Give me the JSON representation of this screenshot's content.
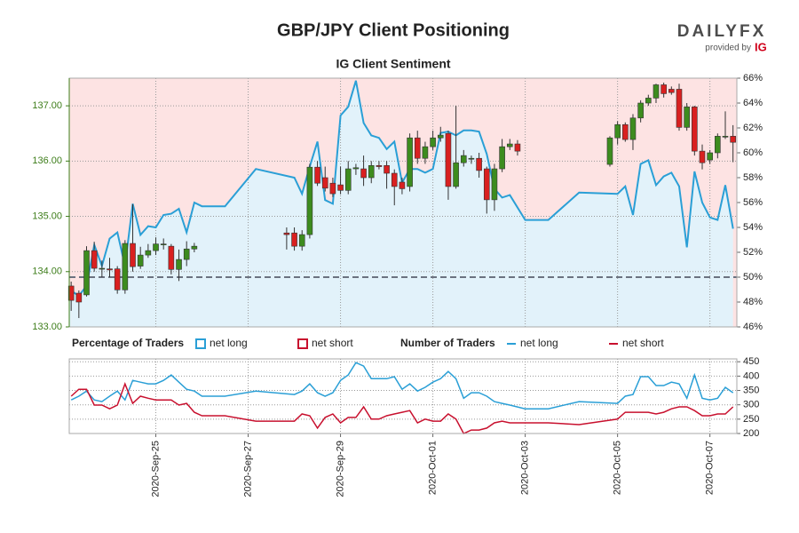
{
  "logo": {
    "brand": "DAILYFX",
    "tagline": "provided by",
    "provider": "IG"
  },
  "chart_data": [
    {
      "type": "candlestick",
      "title": "GBP/JPY Client Positioning",
      "subtitle": "IG Client Sentiment",
      "xlim": [
        "2020-09-23 03:00",
        "2020-10-07 14:00"
      ],
      "ylim": [
        133,
        137.5
      ],
      "yticks": [
        {
          "value": 133,
          "label": "133.00"
        },
        {
          "value": 134,
          "label": "134.00"
        },
        {
          "value": 135,
          "label": "135.00"
        },
        {
          "value": 136,
          "label": "136.00"
        },
        {
          "value": 137,
          "label": "137.00"
        }
      ],
      "y2lim": [
        46,
        66
      ],
      "y2ticks": [
        {
          "value": 46,
          "label": "46%"
        },
        {
          "value": 48,
          "label": "48%"
        },
        {
          "value": 50,
          "label": "50%"
        },
        {
          "value": 52,
          "label": "52%"
        },
        {
          "value": 54,
          "label": "54%"
        },
        {
          "value": 56,
          "label": "56%"
        },
        {
          "value": 58,
          "label": "58%"
        },
        {
          "value": 60,
          "label": "60%"
        },
        {
          "value": 62,
          "label": "62%"
        },
        {
          "value": 64,
          "label": "64%"
        },
        {
          "value": 66,
          "label": "66%"
        }
      ],
      "grid": true,
      "reference_line": 50,
      "up_color": "#3d8c1e",
      "down_color": "#d92020",
      "candles": {
        "x": [
          "2020-09-23 04:00",
          "2020-09-23 08:00",
          "2020-09-23 12:00",
          "2020-09-23 16:00",
          "2020-09-23 20:00",
          "2020-09-24 00:00",
          "2020-09-24 04:00",
          "2020-09-24 08:00",
          "2020-09-24 12:00",
          "2020-09-24 16:00",
          "2020-09-24 20:00",
          "2020-09-25 00:00",
          "2020-09-25 04:00",
          "2020-09-25 08:00",
          "2020-09-25 12:00",
          "2020-09-25 16:00",
          "2020-09-25 20:00",
          "2020-09-27 20:00",
          "2020-09-28 00:00",
          "2020-09-28 04:00",
          "2020-09-28 08:00",
          "2020-09-28 12:00",
          "2020-09-28 16:00",
          "2020-09-28 20:00",
          "2020-09-29 00:00",
          "2020-09-29 04:00",
          "2020-09-29 08:00",
          "2020-09-29 12:00",
          "2020-09-29 16:00",
          "2020-09-29 20:00",
          "2020-09-30 00:00",
          "2020-09-30 04:00",
          "2020-09-30 08:00",
          "2020-09-30 12:00",
          "2020-09-30 16:00",
          "2020-09-30 20:00",
          "2020-10-01 00:00",
          "2020-10-01 04:00",
          "2020-10-01 08:00",
          "2020-10-01 12:00",
          "2020-10-01 16:00",
          "2020-10-01 20:00",
          "2020-10-02 00:00",
          "2020-10-02 04:00",
          "2020-10-02 08:00",
          "2020-10-02 12:00",
          "2020-10-02 16:00",
          "2020-10-02 20:00",
          "2020-10-04 20:00",
          "2020-10-05 00:00",
          "2020-10-05 04:00",
          "2020-10-05 08:00",
          "2020-10-05 12:00",
          "2020-10-05 16:00",
          "2020-10-05 20:00",
          "2020-10-06 00:00",
          "2020-10-06 04:00",
          "2020-10-06 08:00",
          "2020-10-06 12:00",
          "2020-10-06 16:00",
          "2020-10-06 20:00",
          "2020-10-07 00:00",
          "2020-10-07 04:00",
          "2020-10-07 08:00",
          "2020-10-07 12:00"
        ],
        "open": [
          133.74,
          133.61,
          133.58,
          134.38,
          134.05,
          134.05,
          134.05,
          133.67,
          134.51,
          134.1,
          134.3,
          134.38,
          134.5,
          134.46,
          134.04,
          134.22,
          134.41,
          134.7,
          134.7,
          134.46,
          134.67,
          135.89,
          135.7,
          135.6,
          135.57,
          135.47,
          135.86,
          135.86,
          135.7,
          135.92,
          135.92,
          135.78,
          135.62,
          135.54,
          136.42,
          136.05,
          136.26,
          136.42,
          136.5,
          135.54,
          135.97,
          136.05,
          136.05,
          135.86,
          135.3,
          135.86,
          136.26,
          136.31,
          135.94,
          136.42,
          136.66,
          136.39,
          136.78,
          137.05,
          137.14,
          137.38,
          137.3,
          137.3,
          136.61,
          136.98,
          136.18,
          136.02,
          136.15,
          136.45,
          136.45
        ],
        "high": [
          133.82,
          133.66,
          134.46,
          134.54,
          134.2,
          134.25,
          134.1,
          134.57,
          135.22,
          134.45,
          134.5,
          134.62,
          134.6,
          134.5,
          134.4,
          134.55,
          134.52,
          134.8,
          134.8,
          134.75,
          135.95,
          136.0,
          135.9,
          135.7,
          135.9,
          136.0,
          135.95,
          136.1,
          136.0,
          136.0,
          136.0,
          135.85,
          135.7,
          136.5,
          136.55,
          136.35,
          136.55,
          136.62,
          136.55,
          137.0,
          136.2,
          136.1,
          136.15,
          135.9,
          135.95,
          136.4,
          136.4,
          136.38,
          136.45,
          136.72,
          136.7,
          136.85,
          137.1,
          137.2,
          137.4,
          137.42,
          137.35,
          137.4,
          137.05,
          137.0,
          136.3,
          136.2,
          136.5,
          136.9,
          136.65
        ],
        "low": [
          133.29,
          133.16,
          133.55,
          134.0,
          133.9,
          133.9,
          133.6,
          133.6,
          134.0,
          134.05,
          134.25,
          134.3,
          134.4,
          133.95,
          133.83,
          134.1,
          134.35,
          134.4,
          134.38,
          134.38,
          134.6,
          135.55,
          135.45,
          135.35,
          135.4,
          135.4,
          135.75,
          135.55,
          135.6,
          135.85,
          135.5,
          135.2,
          135.4,
          135.45,
          135.95,
          135.95,
          136.2,
          136.35,
          135.3,
          135.5,
          135.9,
          135.95,
          135.7,
          135.05,
          135.1,
          135.8,
          136.2,
          136.1,
          135.9,
          136.3,
          136.35,
          136.2,
          136.7,
          137.0,
          137.05,
          137.15,
          137.2,
          136.55,
          136.55,
          136.1,
          135.85,
          135.95,
          136.05,
          136.4,
          135.98
        ],
        "close": [
          133.48,
          133.45,
          134.38,
          134.06,
          134.06,
          134.03,
          133.67,
          134.51,
          134.09,
          134.3,
          134.38,
          134.5,
          134.5,
          134.04,
          134.22,
          134.41,
          134.46,
          134.67,
          134.46,
          134.67,
          135.89,
          135.6,
          135.51,
          135.41,
          135.47,
          135.86,
          135.88,
          135.7,
          135.92,
          135.9,
          135.78,
          135.54,
          135.5,
          136.42,
          136.05,
          136.26,
          136.42,
          136.47,
          135.54,
          135.97,
          136.1,
          136.05,
          135.83,
          135.3,
          135.86,
          136.26,
          136.31,
          136.18,
          136.42,
          136.66,
          136.39,
          136.78,
          137.05,
          137.14,
          137.38,
          137.22,
          137.24,
          136.61,
          136.98,
          136.18,
          135.97,
          136.15,
          136.45,
          136.45,
          136.34
        ]
      },
      "legend_title": "Percentage of Traders",
      "series": [
        {
          "name": "net long",
          "color": "#2a9fd6",
          "fill": "#e2f2fa",
          "axis": "y2",
          "x": [
            "2020-09-23 04:00",
            "2020-09-23 08:00",
            "2020-09-23 12:00",
            "2020-09-23 16:00",
            "2020-09-23 20:00",
            "2020-09-24 00:00",
            "2020-09-24 04:00",
            "2020-09-24 08:00",
            "2020-09-24 12:00",
            "2020-09-24 16:00",
            "2020-09-24 20:00",
            "2020-09-25 00:00",
            "2020-09-25 04:00",
            "2020-09-25 08:00",
            "2020-09-25 12:00",
            "2020-09-25 16:00",
            "2020-09-25 20:00",
            "2020-09-26 00:00",
            "2020-09-26 12:00",
            "2020-09-27 04:00",
            "2020-09-28 00:00",
            "2020-09-28 04:00",
            "2020-09-28 08:00",
            "2020-09-28 12:00",
            "2020-09-28 16:00",
            "2020-09-28 20:00",
            "2020-09-29 00:00",
            "2020-09-29 04:00",
            "2020-09-29 08:00",
            "2020-09-29 12:00",
            "2020-09-29 16:00",
            "2020-09-29 20:00",
            "2020-09-30 00:00",
            "2020-09-30 04:00",
            "2020-09-30 08:00",
            "2020-09-30 12:00",
            "2020-09-30 16:00",
            "2020-09-30 20:00",
            "2020-10-01 00:00",
            "2020-10-01 04:00",
            "2020-10-01 08:00",
            "2020-10-01 12:00",
            "2020-10-01 16:00",
            "2020-10-01 20:00",
            "2020-10-02 00:00",
            "2020-10-02 04:00",
            "2020-10-02 08:00",
            "2020-10-02 12:00",
            "2020-10-02 16:00",
            "2020-10-03 00:00",
            "2020-10-03 12:00",
            "2020-10-04 04:00",
            "2020-10-05 00:00",
            "2020-10-05 04:00",
            "2020-10-05 08:00",
            "2020-10-05 12:00",
            "2020-10-05 16:00",
            "2020-10-05 20:00",
            "2020-10-06 00:00",
            "2020-10-06 04:00",
            "2020-10-06 08:00",
            "2020-10-06 12:00",
            "2020-10-06 16:00",
            "2020-10-06 20:00",
            "2020-10-07 00:00",
            "2020-10-07 04:00",
            "2020-10-07 08:00",
            "2020-10-07 12:00"
          ],
          "values": [
            48.9,
            48.5,
            49.3,
            52.6,
            50.9,
            53.1,
            53.6,
            50.9,
            55.9,
            53.4,
            54.1,
            54.0,
            55.0,
            55.1,
            55.5,
            53.6,
            56.0,
            55.7,
            55.7,
            58.7,
            58.0,
            56.7,
            58.9,
            60.9,
            56.2,
            55.9,
            63.0,
            63.7,
            65.8,
            62.4,
            61.4,
            61.2,
            60.3,
            60.9,
            57.6,
            58.7,
            58.7,
            58.4,
            58.7,
            61.6,
            61.7,
            61.4,
            61.8,
            61.8,
            61.7,
            59.9,
            57.1,
            56.4,
            56.6,
            54.6,
            54.6,
            56.8,
            56.7,
            57.3,
            55.0,
            59.1,
            59.4,
            57.4,
            58.1,
            58.4,
            57.3,
            52.4,
            58.5,
            56.0,
            54.8,
            54.6,
            57.4,
            53.9
          ]
        },
        {
          "name": "net short",
          "color": "#c8102e",
          "fill": "#fde3e3"
        }
      ]
    },
    {
      "type": "line",
      "xlim": [
        "2020-09-23 03:00",
        "2020-10-07 14:00"
      ],
      "xticks": [
        {
          "value": "2020-09-25 00:00",
          "label": "2020-Sep-25"
        },
        {
          "value": "2020-09-27 00:00",
          "label": "2020-Sep-27"
        },
        {
          "value": "2020-09-29 00:00",
          "label": "2020-Sep-29"
        },
        {
          "value": "2020-10-01 00:00",
          "label": "2020-Oct-01"
        },
        {
          "value": "2020-10-03 00:00",
          "label": "2020-Oct-03"
        },
        {
          "value": "2020-10-05 00:00",
          "label": "2020-Oct-05"
        },
        {
          "value": "2020-10-07 00:00",
          "label": "2020-Oct-07"
        }
      ],
      "y2lim": [
        200,
        460
      ],
      "y2ticks": [
        200,
        250,
        300,
        350,
        400,
        450
      ],
      "grid": true,
      "legend_title": "Number of Traders",
      "x": [
        "2020-09-23 04:00",
        "2020-09-23 08:00",
        "2020-09-23 12:00",
        "2020-09-23 16:00",
        "2020-09-23 20:00",
        "2020-09-24 00:00",
        "2020-09-24 04:00",
        "2020-09-24 08:00",
        "2020-09-24 12:00",
        "2020-09-24 16:00",
        "2020-09-24 20:00",
        "2020-09-25 00:00",
        "2020-09-25 04:00",
        "2020-09-25 08:00",
        "2020-09-25 12:00",
        "2020-09-25 16:00",
        "2020-09-25 20:00",
        "2020-09-26 00:00",
        "2020-09-26 12:00",
        "2020-09-27 04:00",
        "2020-09-28 00:00",
        "2020-09-28 04:00",
        "2020-09-28 08:00",
        "2020-09-28 12:00",
        "2020-09-28 16:00",
        "2020-09-28 20:00",
        "2020-09-29 00:00",
        "2020-09-29 04:00",
        "2020-09-29 08:00",
        "2020-09-29 12:00",
        "2020-09-29 16:00",
        "2020-09-29 20:00",
        "2020-09-30 00:00",
        "2020-09-30 04:00",
        "2020-09-30 08:00",
        "2020-09-30 12:00",
        "2020-09-30 16:00",
        "2020-09-30 20:00",
        "2020-10-01 00:00",
        "2020-10-01 04:00",
        "2020-10-01 08:00",
        "2020-10-01 12:00",
        "2020-10-01 16:00",
        "2020-10-01 20:00",
        "2020-10-02 00:00",
        "2020-10-02 04:00",
        "2020-10-02 08:00",
        "2020-10-02 12:00",
        "2020-10-02 16:00",
        "2020-10-03 00:00",
        "2020-10-03 12:00",
        "2020-10-04 04:00",
        "2020-10-05 00:00",
        "2020-10-05 04:00",
        "2020-10-05 08:00",
        "2020-10-05 12:00",
        "2020-10-05 16:00",
        "2020-10-05 20:00",
        "2020-10-06 00:00",
        "2020-10-06 04:00",
        "2020-10-06 08:00",
        "2020-10-06 12:00",
        "2020-10-06 16:00",
        "2020-10-06 20:00",
        "2020-10-07 00:00",
        "2020-10-07 04:00",
        "2020-10-07 08:00",
        "2020-10-07 12:00"
      ],
      "series": [
        {
          "name": "net long",
          "color": "#2a9fd6",
          "axis": "y2",
          "values": [
            317,
            330,
            348,
            317,
            311,
            330,
            348,
            317,
            385,
            379,
            373,
            373,
            385,
            404,
            379,
            354,
            348,
            330,
            330,
            348,
            336,
            348,
            373,
            342,
            330,
            342,
            385,
            404,
            447,
            435,
            391,
            391,
            391,
            398,
            354,
            373,
            348,
            361,
            379,
            391,
            416,
            391,
            323,
            342,
            342,
            330,
            311,
            305,
            299,
            286,
            286,
            311,
            305,
            330,
            336,
            398,
            398,
            367,
            367,
            379,
            373,
            323,
            404,
            323,
            317,
            323,
            361,
            342
          ]
        },
        {
          "name": "net short",
          "color": "#c8102e",
          "axis": "y2",
          "values": [
            330,
            354,
            354,
            299,
            299,
            286,
            299,
            373,
            305,
            330,
            323,
            317,
            317,
            317,
            299,
            305,
            274,
            262,
            262,
            243,
            243,
            268,
            262,
            219,
            256,
            268,
            237,
            256,
            256,
            293,
            250,
            250,
            262,
            268,
            274,
            280,
            237,
            250,
            243,
            243,
            268,
            250,
            200,
            212,
            212,
            219,
            237,
            243,
            237,
            237,
            237,
            231,
            250,
            274,
            274,
            274,
            274,
            268,
            274,
            286,
            293,
            293,
            280,
            262,
            262,
            268,
            268,
            293
          ]
        }
      ]
    }
  ]
}
